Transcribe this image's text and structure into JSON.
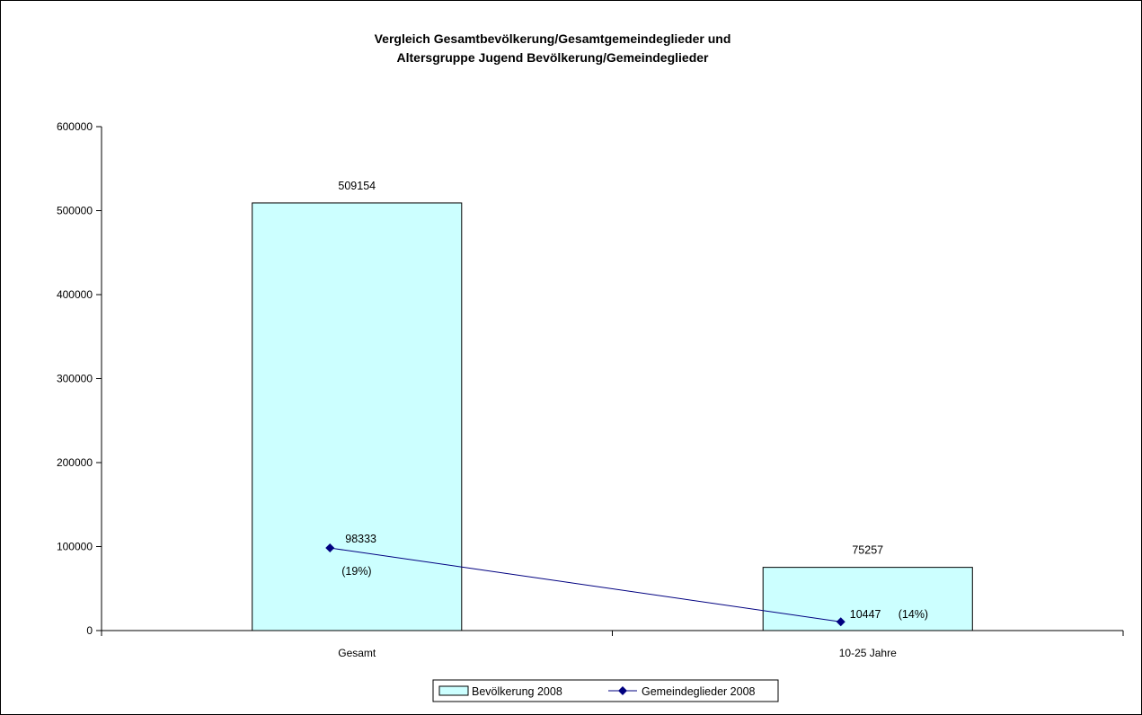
{
  "chart_data": {
    "type": "bar",
    "title": [
      "Vergleich Gesamtbevölkerung/Gesamtgemeindeglieder und",
      "Altersgruppe Jugend Bevölkerung/Gemeindeglieder"
    ],
    "categories": [
      "Gesamt",
      "10-25 Jahre"
    ],
    "ylim": [
      0,
      600000
    ],
    "yticks": [
      0,
      100000,
      200000,
      300000,
      400000,
      500000,
      600000
    ],
    "grid": false,
    "legend_position": "bottom",
    "series": [
      {
        "name": "Bevölkerung 2008",
        "kind": "bar",
        "values": [
          509154,
          75257
        ],
        "labels": [
          "509154",
          "75257"
        ],
        "color": "#ccffff"
      },
      {
        "name": "Gemeindeglieder 2008",
        "kind": "line",
        "values": [
          98333,
          10447
        ],
        "labels": [
          "98333",
          "10447"
        ],
        "percent_labels": [
          "(19%)",
          "(14%)"
        ],
        "color": "#000080"
      }
    ]
  }
}
